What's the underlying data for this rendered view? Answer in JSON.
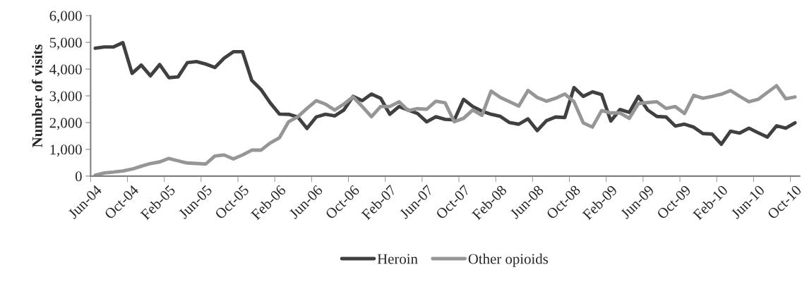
{
  "chart_data": {
    "type": "line",
    "ylabel": "Number of visits",
    "categories": [
      "Jun-04",
      null,
      null,
      null,
      "Oct-04",
      null,
      null,
      null,
      "Feb-05",
      null,
      null,
      null,
      "Jun-05",
      null,
      null,
      null,
      "Oct-05",
      null,
      null,
      null,
      "Feb-06",
      null,
      null,
      null,
      "Jun-06",
      null,
      null,
      null,
      "Oct-06",
      null,
      null,
      null,
      "Feb-07",
      null,
      null,
      null,
      "Jun-07",
      null,
      null,
      null,
      "Oct-07",
      null,
      null,
      null,
      "Feb-08",
      null,
      null,
      null,
      "Jun-08",
      null,
      null,
      null,
      "Oct-08",
      null,
      null,
      null,
      "Feb-09",
      null,
      null,
      null,
      "Jun-09",
      null,
      null,
      null,
      "Oct-09",
      null,
      null,
      null,
      "Feb-10",
      null,
      null,
      null,
      "Jun-10",
      null,
      null,
      null,
      "Oct-10"
    ],
    "series": [
      {
        "name": "Heroin",
        "color": "#404040",
        "values": [
          4780,
          4830,
          4830,
          4990,
          3840,
          4150,
          3750,
          4170,
          3680,
          3710,
          4240,
          4280,
          4190,
          4060,
          4410,
          4650,
          4650,
          3580,
          3240,
          2740,
          2320,
          2310,
          2210,
          1780,
          2210,
          2310,
          2250,
          2470,
          2980,
          2820,
          3070,
          2910,
          2310,
          2600,
          2470,
          2340,
          2030,
          2220,
          2120,
          2100,
          2870,
          2600,
          2430,
          2310,
          2230,
          2000,
          1940,
          2140,
          1700,
          2070,
          2210,
          2190,
          3310,
          2980,
          3150,
          3050,
          2060,
          2490,
          2380,
          2980,
          2470,
          2230,
          2210,
          1870,
          1940,
          1830,
          1590,
          1570,
          1190,
          1680,
          1610,
          1790,
          1620,
          1460,
          1880,
          1790,
          1990
        ]
      },
      {
        "name": "Other opioids",
        "color": "#969696",
        "values": [
          30,
          120,
          150,
          190,
          260,
          370,
          470,
          530,
          660,
          570,
          490,
          470,
          450,
          750,
          790,
          640,
          790,
          970,
          970,
          1240,
          1430,
          2030,
          2220,
          2530,
          2820,
          2690,
          2470,
          2690,
          2960,
          2600,
          2220,
          2600,
          2600,
          2780,
          2450,
          2520,
          2500,
          2800,
          2740,
          2030,
          2160,
          2470,
          2270,
          3180,
          2940,
          2780,
          2620,
          3200,
          2940,
          2800,
          2910,
          3070,
          2780,
          1990,
          1830,
          2450,
          2360,
          2360,
          2160,
          2710,
          2750,
          2780,
          2530,
          2600,
          2340,
          3020,
          2910,
          2980,
          3060,
          3200,
          2980,
          2780,
          2870,
          3130,
          3380,
          2890,
          2960
        ]
      }
    ],
    "ylim": [
      0,
      6000
    ],
    "yticks": [
      0,
      {
        "value": 1000,
        "label": "1,000"
      },
      {
        "value": 2000,
        "label": "2,000"
      },
      {
        "value": 3000,
        "label": "3,000"
      },
      {
        "value": 4000,
        "label": "4,000"
      },
      {
        "value": 5000,
        "label": "5,000"
      },
      {
        "value": 6000,
        "label": "6,000"
      }
    ],
    "legend": "bottom",
    "grid": false,
    "marker": "none",
    "line_style": "solid"
  }
}
